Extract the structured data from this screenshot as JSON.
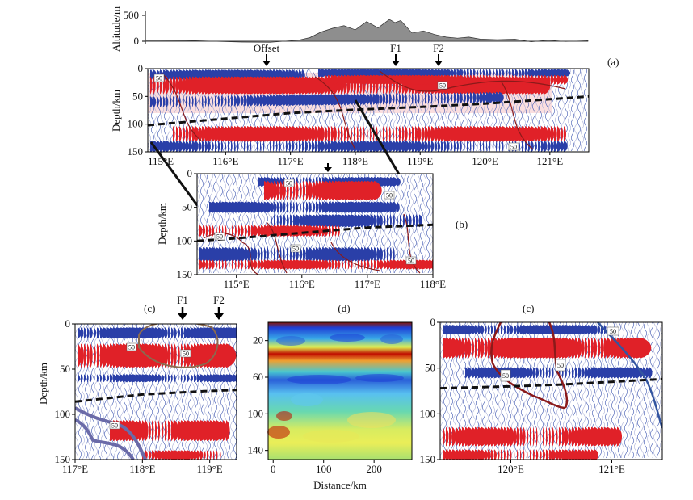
{
  "chart_data": [
    {
      "id": "altitude",
      "type": "area",
      "ylabel": "Altitude/m",
      "yticks": [
        0,
        500
      ],
      "ylim": [
        -100,
        600
      ],
      "x": [
        113.8,
        114.5,
        115.0,
        115.5,
        116.0,
        116.3,
        116.5,
        116.7,
        116.9,
        117.1,
        117.3,
        117.5,
        117.7,
        117.9,
        118.1,
        118.2,
        118.3,
        118.5,
        118.7,
        118.9,
        119.1,
        119.3,
        119.5,
        119.7,
        120.0,
        120.3,
        120.6,
        120.9,
        121.2,
        121.6
      ],
      "y": [
        20,
        15,
        0,
        -15,
        -20,
        5,
        20,
        70,
        180,
        250,
        300,
        220,
        380,
        260,
        420,
        360,
        400,
        160,
        200,
        130,
        80,
        60,
        80,
        40,
        30,
        40,
        -10,
        20,
        -5,
        10
      ],
      "labels": {
        "offset": "Offset",
        "f1": "F1",
        "f2": "F2",
        "panel": "(a)"
      }
    },
    {
      "id": "a",
      "type": "wiggle",
      "panel": "(a)",
      "ylabel": "Depth/km",
      "yticks": [
        0,
        50,
        100,
        150
      ],
      "xticks": [
        "115°E",
        "116°E",
        "117°E",
        "118°E",
        "119°E",
        "120°E",
        "121°E"
      ],
      "xlim": [
        114.8,
        121.6
      ],
      "ylim": [
        0,
        150
      ],
      "contour_label": "50",
      "moho_km": [
        [
          114.8,
          102
        ],
        [
          116,
          90
        ],
        [
          117,
          80
        ],
        [
          118,
          74
        ],
        [
          119,
          69
        ],
        [
          120,
          63
        ],
        [
          121,
          55
        ],
        [
          121.6,
          50
        ]
      ]
    },
    {
      "id": "b",
      "type": "wiggle",
      "panel": "(b)",
      "ylabel": "Depth/km",
      "yticks": [
        0,
        50,
        100,
        150
      ],
      "xticks": [
        "115°E",
        "116°E",
        "117°E",
        "118°E"
      ],
      "xlim": [
        114.4,
        118.0
      ],
      "ylim": [
        0,
        150
      ],
      "contour_label": "50",
      "moho_km": [
        [
          114.4,
          100
        ],
        [
          115,
          96
        ],
        [
          116,
          88
        ],
        [
          117,
          80
        ],
        [
          118,
          76
        ]
      ]
    },
    {
      "id": "c1",
      "type": "wiggle",
      "panel": "(c)",
      "ylabel": "Depth/km",
      "yticks": [
        0,
        50,
        100,
        150
      ],
      "xticks": [
        "117°E",
        "118°E",
        "119°E"
      ],
      "xlim": [
        117.0,
        119.4
      ],
      "ylim": [
        0,
        150
      ],
      "contour_label": "50",
      "labels": {
        "f1": "F1",
        "f2": "F2"
      },
      "moho_km": [
        [
          117,
          86
        ],
        [
          118,
          78
        ],
        [
          119,
          74
        ],
        [
          119.4,
          73
        ]
      ]
    },
    {
      "id": "d",
      "type": "heatmap",
      "panel": "(d)",
      "xlabel": "Distance/km",
      "xticks": [
        0,
        100,
        200
      ],
      "yticks": [
        20,
        60,
        100,
        140
      ],
      "xlim": [
        -10,
        275
      ],
      "ylim": [
        150,
        0
      ],
      "bands": [
        {
          "depth": 4,
          "value": "low"
        },
        {
          "depth": 36,
          "value": "high"
        },
        {
          "depth": 62,
          "value": "low"
        },
        {
          "depth": 120,
          "value": "mid-high"
        },
        {
          "depth": 133,
          "value": "high"
        }
      ]
    },
    {
      "id": "c2",
      "type": "wiggle",
      "panel": "(c)",
      "xticks": [
        "120°E",
        "121°E"
      ],
      "yticks": [
        0,
        50,
        100,
        150
      ],
      "xlim": [
        119.3,
        121.5
      ],
      "ylim": [
        0,
        150
      ],
      "contour_labels": [
        "50",
        "50",
        "50"
      ],
      "moho_km": [
        [
          119.3,
          72
        ],
        [
          120,
          70
        ],
        [
          120.5,
          68
        ],
        [
          121,
          65
        ],
        [
          121.5,
          62
        ]
      ]
    }
  ]
}
